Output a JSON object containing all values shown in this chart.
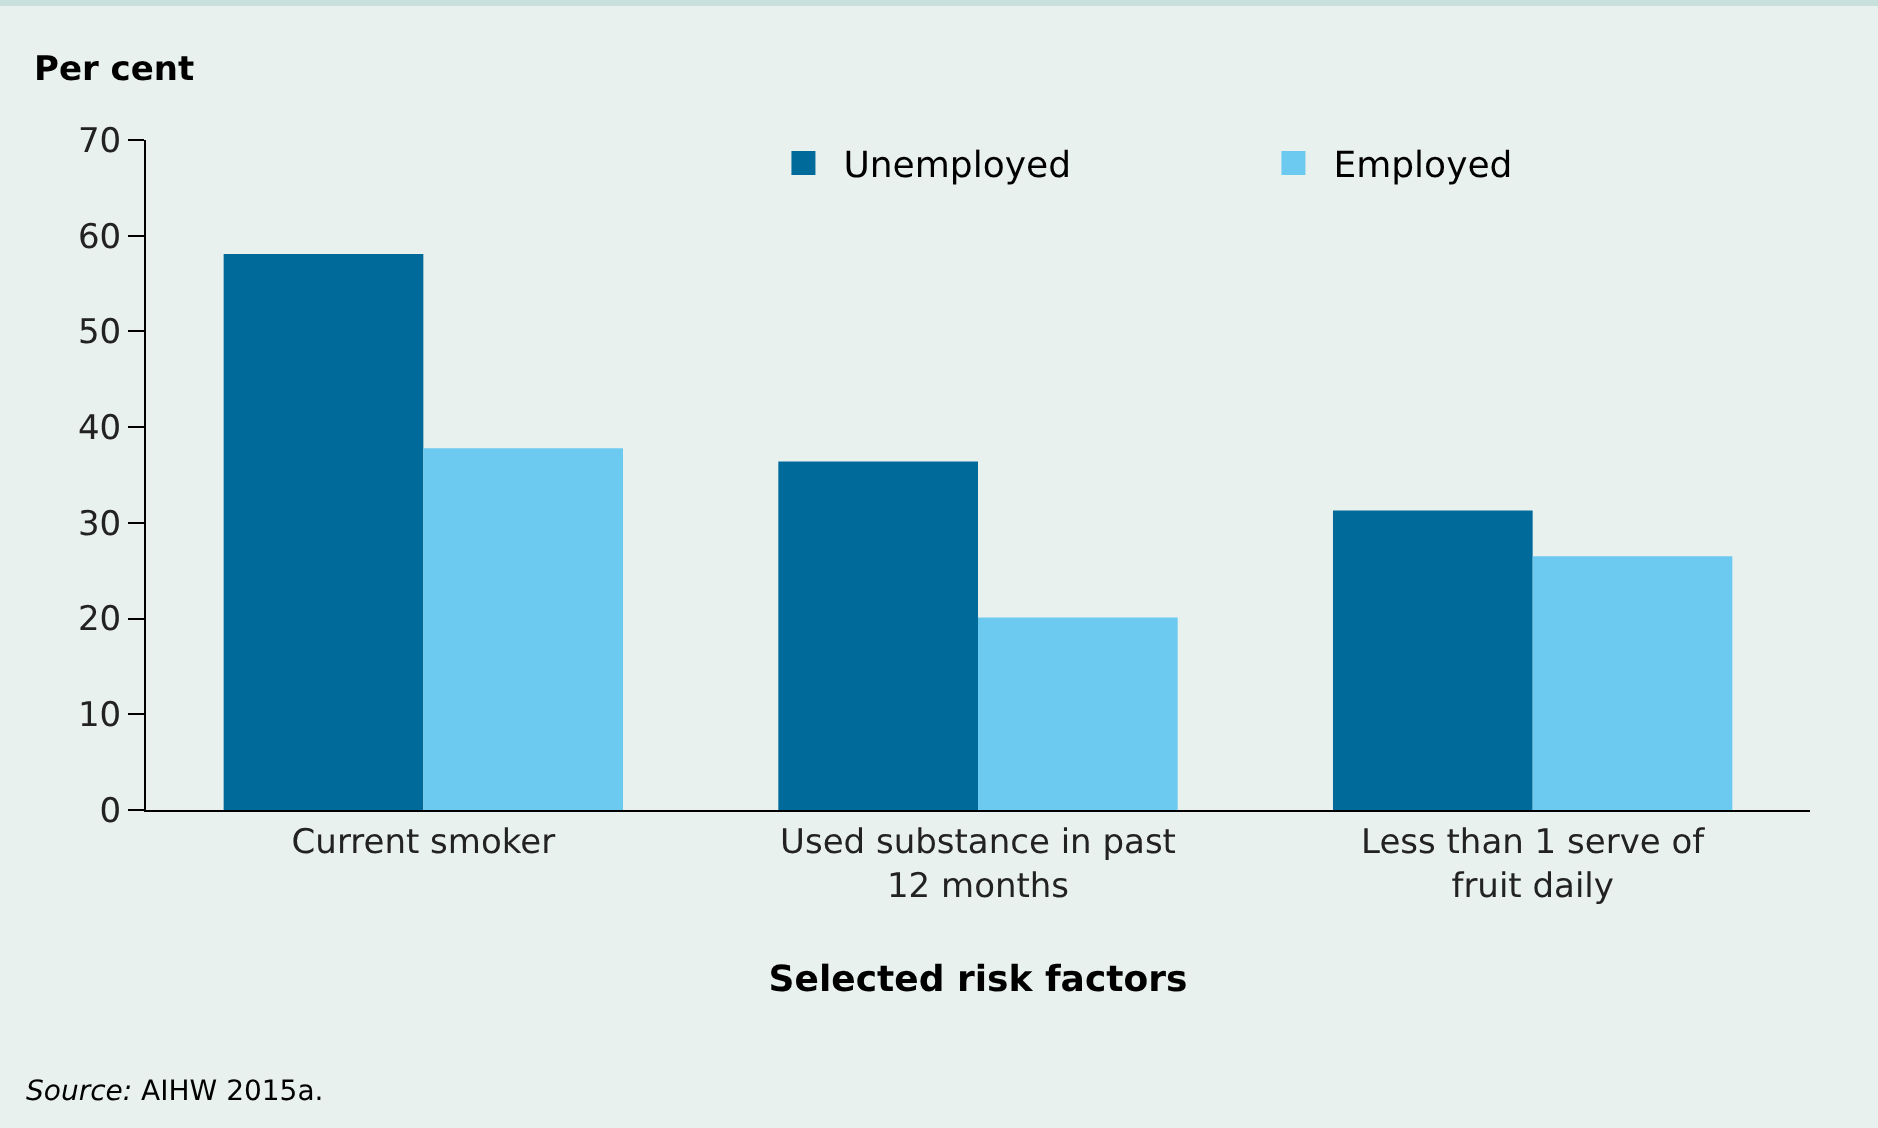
{
  "chart_data": {
    "type": "bar",
    "categories": [
      "Current smoker",
      "Used substance in past 12 months",
      "Less than 1 serve of fruit daily"
    ],
    "series": [
      {
        "name": "Unemployed",
        "color": "#006a9a",
        "values": [
          58.1,
          36.4,
          31.3
        ]
      },
      {
        "name": "Employed",
        "color": "#6cc9ef",
        "values": [
          37.8,
          20.1,
          26.5
        ]
      }
    ],
    "ylabel": "Per cent",
    "xlabel": "Selected risk factors",
    "ylim": [
      0,
      70
    ],
    "yticks": [
      0,
      10,
      20,
      30,
      40,
      50,
      60,
      70
    ],
    "grid": false,
    "legend": "top right",
    "annotations": [
      "Source: AIHW 2015a."
    ]
  }
}
